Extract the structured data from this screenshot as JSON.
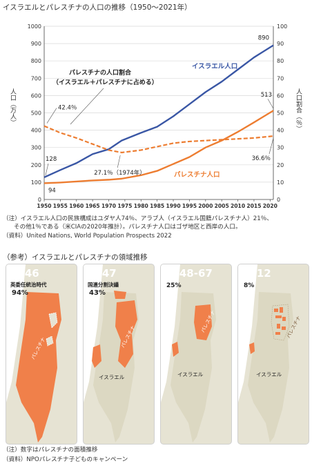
{
  "title": "イスラエルとパレスチナの人口の推移（1950〜2021年）",
  "chart_data": {
    "type": "line",
    "x": [
      1950,
      1955,
      1960,
      1965,
      1970,
      1974,
      1980,
      1985,
      1990,
      1995,
      2000,
      2005,
      2010,
      2015,
      2021
    ],
    "xticks": [
      "1950",
      "1955",
      "1960",
      "1965",
      "1970",
      "1975",
      "1980",
      "1985",
      "1990",
      "1995",
      "2000",
      "2005",
      "2010",
      "2015",
      "2020"
    ],
    "xlim": [
      1950,
      2021
    ],
    "ylim_left": [
      0,
      1000
    ],
    "ylim_right": [
      0,
      100
    ],
    "yticks_left": [
      "0",
      "100",
      "200",
      "300",
      "400",
      "500",
      "600",
      "700",
      "800",
      "900",
      "1000"
    ],
    "yticks_right": [
      "0",
      "10",
      "20",
      "30",
      "40",
      "50",
      "60",
      "70",
      "80",
      "90",
      "100"
    ],
    "ylabel_left": "人口（万人）",
    "ylabel_right": "人口割合（％）",
    "series": [
      {
        "name": "イスラエル人口",
        "axis": "left",
        "color": "#3a57a5",
        "values": [
          128,
          170,
          210,
          262,
          290,
          340,
          385,
          420,
          480,
          550,
          620,
          680,
          750,
          820,
          890
        ]
      },
      {
        "name": "パレスチナ人口",
        "axis": "left",
        "color": "#ed7d31",
        "values": [
          94,
          98,
          104,
          110,
          114,
          120,
          140,
          165,
          205,
          245,
          300,
          340,
          390,
          445,
          513
        ]
      },
      {
        "name": "パレスチナの人口割合",
        "axis": "right",
        "color": "#ed7d31",
        "dashed": true,
        "values": [
          42.4,
          38.5,
          35.5,
          32.0,
          28.5,
          27.1,
          28.5,
          30.5,
          32.5,
          33.5,
          34.0,
          34.5,
          35.0,
          35.5,
          36.6
        ]
      }
    ],
    "annotations": {
      "isr_start": "128",
      "isr_end": "890",
      "pal_start": "94",
      "pal_end": "513",
      "share_start": "42.4％",
      "share_min": "27.1％（1974年）",
      "share_end": "36.6％",
      "share_name_1": "パレスチナの人口割合",
      "share_name_2": "（イスラエル＋パレスチナに占める）"
    }
  },
  "notes": {
    "n1": "（注）イスラエル人口の民族構成はユダヤ人74％、アラブ人（イスラエル国籍パレスチナ人）21％、",
    "n2": "その他1％である（米CIAの2020年推計）。パレスチナ人口はゴザ地区と西岸の人口。",
    "n3": "（資料）United Nations, World Population Prospects 2022"
  },
  "reference": {
    "title": "（参考）イスラエルとパレスチナの領域推移",
    "panels": [
      {
        "year": "1946",
        "subtitle": "英委任統治時代",
        "pct": "94%",
        "label": "パレスチナ"
      },
      {
        "year": "1947",
        "subtitle": "国連分割決議",
        "pct": "43%",
        "label": "パレスチナ",
        "label2": "イスラエル"
      },
      {
        "year": "1948-67",
        "pct": "25%",
        "label": "パレスチナ",
        "label2": "イスラエル"
      },
      {
        "year": "2012",
        "pct": "8%",
        "label": "パレスチナ",
        "label2": "イスラエル"
      }
    ],
    "colors": {
      "palestine": "#f0804a",
      "israel": "#e6e3d3",
      "sea": "#ffffff"
    },
    "note1": "（注）数字はパレスチナの面積推移",
    "note2": "（資料）NPOパレスチナ子どものキャンペーン"
  }
}
